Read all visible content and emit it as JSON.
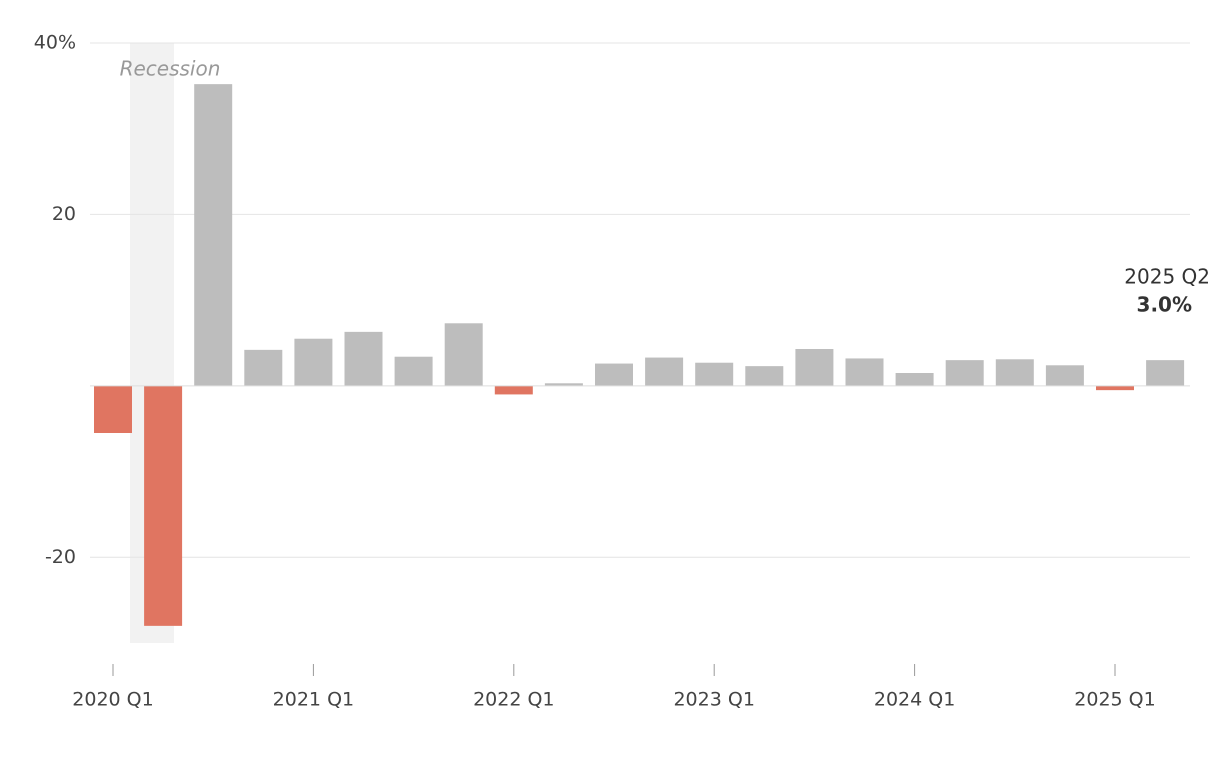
{
  "chart_data": {
    "type": "bar",
    "categories": [
      "2020 Q1",
      null,
      null,
      null,
      "2021 Q1",
      null,
      null,
      null,
      "2022 Q1",
      null,
      null,
      null,
      "2023 Q1",
      null,
      null,
      null,
      "2024 Q1",
      null,
      null,
      null,
      "2025 Q1",
      null
    ],
    "values": [
      -5.5,
      -28.0,
      35.2,
      4.2,
      5.5,
      6.3,
      3.4,
      7.3,
      -1.0,
      0.3,
      2.6,
      3.3,
      2.7,
      2.3,
      4.3,
      3.2,
      1.5,
      3.0,
      3.1,
      2.4,
      -0.5,
      3.0
    ],
    "value_labels": [
      null,
      null,
      null,
      null,
      null,
      null,
      null,
      null,
      null,
      null,
      null,
      null,
      null,
      null,
      null,
      null,
      null,
      null,
      null,
      null,
      null,
      "3.0%"
    ],
    "annotation": "2025 Q2",
    "recession_label": "Recession",
    "colors": {
      "positive": "#bdbdbd",
      "negative": "#e07561"
    },
    "ylim": [
      -30,
      40
    ],
    "yticks": [
      {
        "value": 40,
        "label": "40%"
      },
      20,
      -20
    ],
    "grid": true
  }
}
